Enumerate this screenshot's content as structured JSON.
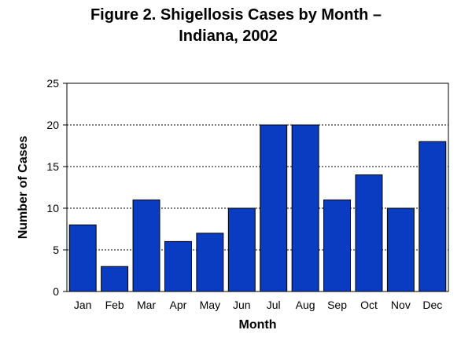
{
  "chart_data": {
    "type": "bar",
    "title_line1": "Figure 2.  Shigellosis Cases by Month –",
    "title_line2": "Indiana, 2002",
    "xlabel": "Month",
    "ylabel": "Number of Cases",
    "categories": [
      "Jan",
      "Feb",
      "Mar",
      "Apr",
      "May",
      "Jun",
      "Jul",
      "Aug",
      "Sep",
      "Oct",
      "Nov",
      "Dec"
    ],
    "values": [
      8,
      3,
      11,
      6,
      7,
      10,
      20,
      20,
      11,
      14,
      10,
      18
    ],
    "ylim": [
      0,
      25
    ],
    "yticks": [
      0,
      5,
      10,
      15,
      20,
      25
    ],
    "grid": true,
    "bar_color": "#0a3cc2"
  }
}
